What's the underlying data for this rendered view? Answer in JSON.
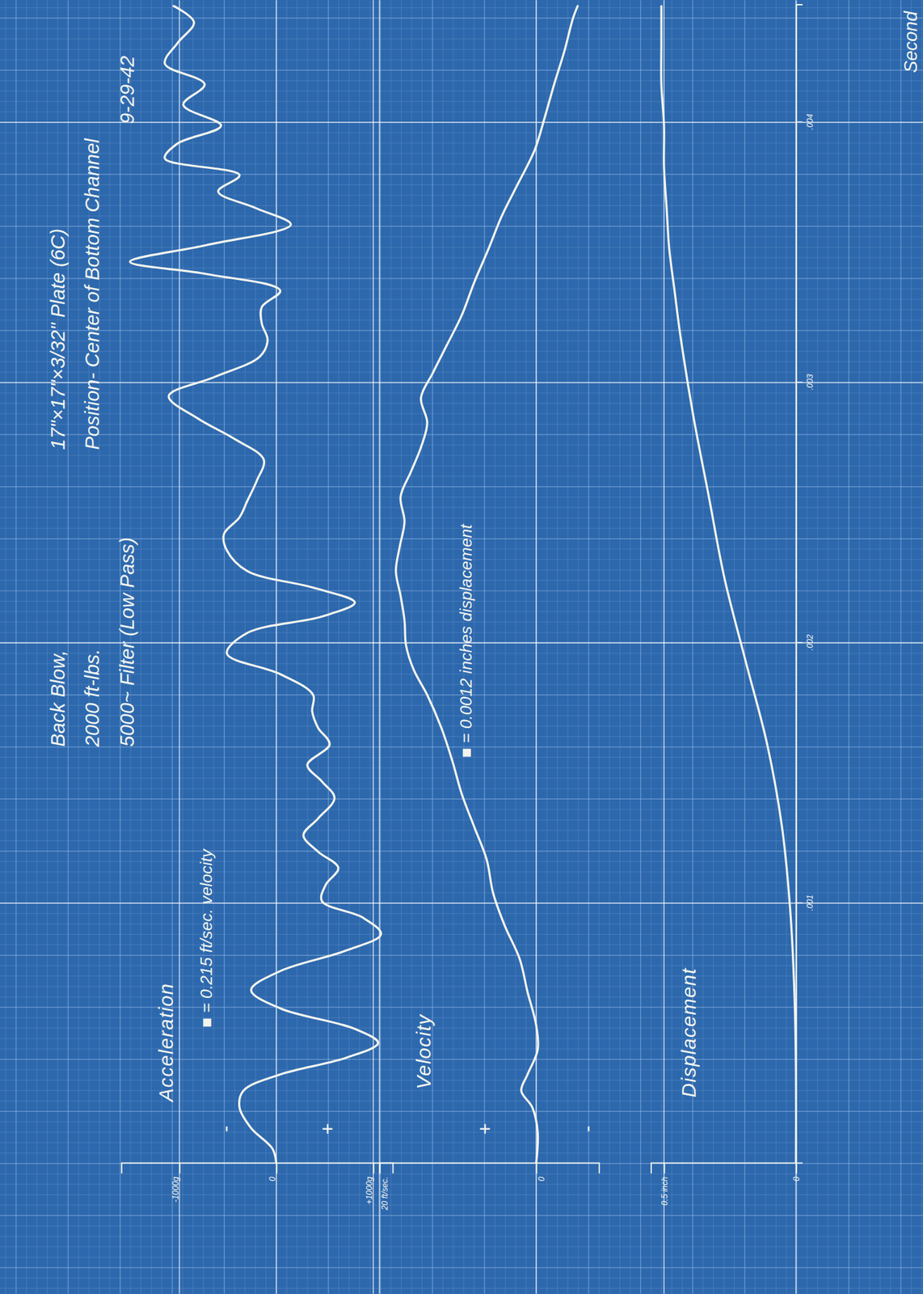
{
  "header": {
    "left": [
      "Back Blow,",
      "2000 ft-lbs.",
      "5000~ Filter (Low Pass)"
    ],
    "right": [
      "17\"×17\"×3/32\" Plate (6C)",
      "Position- Center of Bottom Channel",
      "9-29-42"
    ]
  },
  "chart_data": [
    {
      "type": "line",
      "title": "Acceleration",
      "annotation": "■ = 0.215 ft/sec. velocity",
      "signs": {
        "negative": "-",
        "positive": "+"
      },
      "color": "#f2f4ee",
      "grid": true,
      "xlim": [
        0,
        0.00445
      ],
      "ylim": [
        -1600,
        1200
      ],
      "yticks": [
        {
          "value": -1000,
          "label": "-1000g"
        },
        0,
        {
          "value": 1000,
          "label": "+1000g"
        }
      ],
      "x": [
        0,
        5.7e-05,
        0.000136,
        0.000216,
        0.000279,
        0.000342,
        0.000406,
        0.000463,
        0.000517,
        0.000596,
        0.000666,
        0.000739,
        0.000818,
        0.000881,
        0.000945,
        0.001008,
        0.001071,
        0.001135,
        0.001198,
        0.001261,
        0.001325,
        0.001404,
        0.001468,
        0.001531,
        0.00161,
        0.001674,
        0.001737,
        0.0018,
        0.00188,
        0.001959,
        0.002038,
        0.002101,
        0.002155,
        0.002212,
        0.002276,
        0.002355,
        0.002418,
        0.002482,
        0.002545,
        0.002624,
        0.002704,
        0.002783,
        0.002862,
        0.002948,
        0.003021,
        0.0031,
        0.003163,
        0.003227,
        0.00329,
        0.003353,
        0.003417,
        0.003464,
        0.003528,
        0.003607,
        0.00367,
        0.003734,
        0.003797,
        0.003861,
        0.003918,
        0.003987,
        0.004067,
        0.004146,
        0.004225,
        0.004304,
        0.004384,
        0.004447
      ],
      "values": [
        0,
        -40,
        -260,
        -380,
        -340,
        40,
        720,
        1050,
        810,
        40,
        -260,
        40,
        720,
        1080,
        890,
        470,
        510,
        640,
        430,
        280,
        430,
        600,
        470,
        320,
        550,
        430,
        370,
        380,
        40,
        -510,
        -300,
        470,
        810,
        380,
        -300,
        -510,
        -540,
        -380,
        -300,
        -200,
        -130,
        -430,
        -810,
        -1110,
        -640,
        -170,
        -90,
        -150,
        -150,
        40,
        -720,
        -1510,
        -720,
        150,
        -210,
        -600,
        -380,
        -1150,
        -1020,
        -570,
        -960,
        -740,
        -1150,
        -1020,
        -850,
        -1060
      ]
    },
    {
      "type": "line",
      "title": "Velocity",
      "annotation": "■ = 0.0012 inches displacement",
      "signs": {
        "negative": "-",
        "positive": "+"
      },
      "color": "#f2f4ee",
      "grid": true,
      "xlim": [
        0,
        0.00445
      ],
      "ylim": [
        -8,
        20
      ],
      "yticks": [
        0,
        {
          "value": 20,
          "label": "20 ft/sec."
        }
      ],
      "x": [
        0,
        0.00012,
        0.000216,
        0.000279,
        0.000342,
        0.000437,
        0.000532,
        0.000659,
        0.000786,
        0.000913,
        0.00104,
        0.001166,
        0.001293,
        0.00142,
        0.001547,
        0.001674,
        0.0018,
        0.001895,
        0.00199,
        0.002086,
        0.002181,
        0.002276,
        0.002371,
        0.002466,
        0.002561,
        0.002656,
        0.002751,
        0.002846,
        0.002941,
        0.003036,
        0.003132,
        0.003258,
        0.003385,
        0.003512,
        0.003639,
        0.003765,
        0.003892,
        0.004019,
        0.004146,
        0.004273,
        0.004399,
        0.004447
      ],
      "values": [
        0,
        -0.2,
        0.5,
        1.9,
        1.1,
        -0.2,
        0,
        1.1,
        2.1,
        4.0,
        5.5,
        6.3,
        7.9,
        9.5,
        10.7,
        12.1,
        13.9,
        15.6,
        16.6,
        16.8,
        17.3,
        17.9,
        17.4,
        16.8,
        17.3,
        16.0,
        14.7,
        13.9,
        14.7,
        13.2,
        11.6,
        9.5,
        7.9,
        6.1,
        4.4,
        2.3,
        0.2,
        -1.1,
        -2.3,
        -3.6,
        -4.7,
        -5.3
      ]
    },
    {
      "type": "line",
      "title": "Displacement",
      "color": "#f2f4ee",
      "grid": true,
      "xlim": [
        0,
        0.00445
      ],
      "ylim": [
        0,
        0.55
      ],
      "yticks": [
        0,
        {
          "value": 0.5,
          "label": "0.5 inch"
        }
      ],
      "xticks": [
        {
          "value": 0.001,
          "label": ".001"
        },
        {
          "value": 0.002,
          "label": ".002"
        },
        {
          "value": 0.003,
          "label": ".003"
        },
        {
          "value": 0.004,
          "label": ".004"
        }
      ],
      "xlabel": "Second",
      "x": [
        0,
        0.000342,
        0.000659,
        0.000976,
        0.001293,
        0.00161,
        0.001927,
        0.002244,
        0.002561,
        0.002878,
        0.003195,
        0.003353,
        0.003512,
        0.00367,
        0.003829,
        0.003987,
        0.004146,
        0.004304,
        0.004447
      ],
      "values": [
        0,
        0,
        0.006,
        0.022,
        0.053,
        0.109,
        0.19,
        0.27,
        0.33,
        0.39,
        0.44,
        0.46,
        0.48,
        0.49,
        0.5,
        0.5,
        0.51,
        0.51,
        0.51
      ]
    }
  ]
}
